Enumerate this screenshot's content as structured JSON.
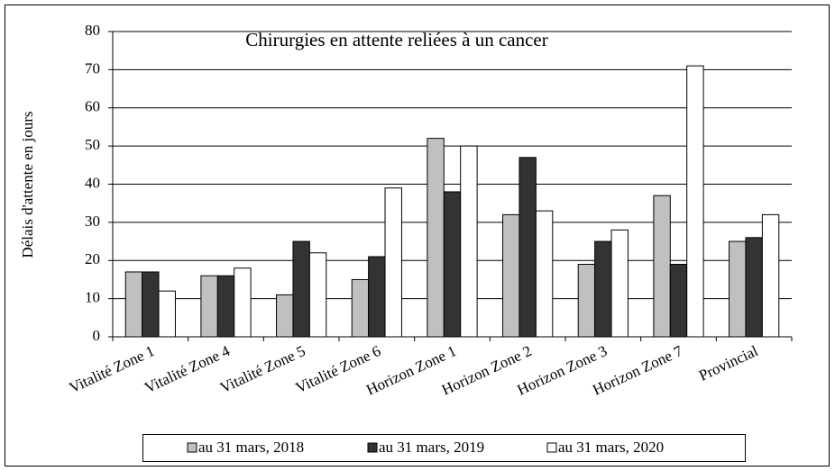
{
  "chart_data": {
    "type": "bar",
    "title": "Chirurgies en attente reliées à un cancer",
    "y_label": "Délais d'attente en jours",
    "categories": [
      "Vitalité Zone 1",
      "Vitalité Zone 4",
      "Vitalité Zone 5",
      "Vitalité Zone 6",
      "Horizon Zone 1",
      "Horizon Zone 2",
      "Horizon Zone 3",
      "Horizon Zone 7",
      "Provincial"
    ],
    "series": [
      {
        "name": "au 31 mars, 2018",
        "color": "#c0c0c0",
        "values": [
          17,
          16,
          11,
          15,
          52,
          32,
          19,
          37,
          25
        ]
      },
      {
        "name": "au 31 mars, 2019",
        "color": "#333333",
        "values": [
          17,
          16,
          25,
          21,
          38,
          47,
          25,
          19,
          26
        ]
      },
      {
        "name": "au 31 mars, 2020",
        "color": "#ffffff",
        "values": [
          12,
          18,
          22,
          39,
          50,
          33,
          28,
          71,
          32
        ]
      }
    ],
    "ylim": [
      0,
      80
    ],
    "yticks": [
      0,
      10,
      20,
      30,
      40,
      50,
      60,
      70,
      80
    ],
    "grid": true,
    "legend": "bottom"
  }
}
